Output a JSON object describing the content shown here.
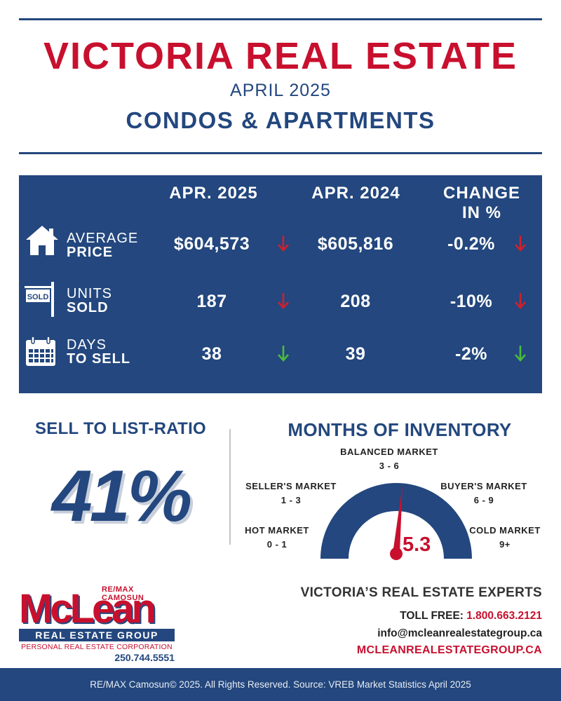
{
  "header": {
    "title": "VICTORIA REAL ESTATE",
    "subtitle": "APRIL 2025",
    "category": "CONDOS & APARTMENTS"
  },
  "stats_table": {
    "columns": [
      "APR. 2025",
      "APR. 2024",
      "CHANGE IN %"
    ],
    "rows": [
      {
        "icon": "house-icon",
        "label_top": "AVERAGE",
        "label_bottom": "PRICE",
        "current": "$604,573",
        "current_trend": "down",
        "previous": "$605,816",
        "change": "-0.2%",
        "change_trend": "down"
      },
      {
        "icon": "sold-sign-icon",
        "icon_text": "SOLD",
        "label_top": "UNITS",
        "label_bottom": "SOLD",
        "current": "187",
        "current_trend": "down",
        "previous": "208",
        "change": "-10%",
        "change_trend": "down"
      },
      {
        "icon": "calendar-icon",
        "label_top": "DAYS",
        "label_bottom": "TO SELL",
        "current": "38",
        "current_trend": "up",
        "previous": "39",
        "change": "-2%",
        "change_trend": "up"
      }
    ]
  },
  "sell_to_list": {
    "title": "SELL TO LIST-RATIO",
    "value": "41%"
  },
  "inventory": {
    "title": "MONTHS OF INVENTORY",
    "value": "5.3",
    "value_numeric": 5.3,
    "markets": [
      {
        "name": "HOT MARKET",
        "range": "0 - 1"
      },
      {
        "name": "SELLER'S MARKET",
        "range": "1 - 3"
      },
      {
        "name": "BALANCED MARKET",
        "range": "3 - 6"
      },
      {
        "name": "BUYER'S MARKET",
        "range": "6 - 9"
      },
      {
        "name": "COLD MARKET",
        "range": "9+"
      }
    ]
  },
  "logo": {
    "brand_top": "RE/MAX CAMOSUN",
    "name": "McLean",
    "group": "REAL ESTATE GROUP",
    "corporation": "PERSONAL REAL ESTATE CORPORATION",
    "phone": "250.744.5551"
  },
  "contact": {
    "tagline": "VICTORIA’S REAL ESTATE EXPERTS",
    "toll_free_label": "TOLL FREE:",
    "toll_free_number": "1.800.663.2121",
    "email": "info@mcleanrealestategroup.ca",
    "website": "MCLEANREALESTATEGROUP.CA"
  },
  "footer": {
    "text": "RE/MAX Camosun© 2025. All Rights Reserved.  Source: VREB Market Statistics April 2025"
  },
  "colors": {
    "navy": "#23477e",
    "red": "#c8102e",
    "down_arrow": "#d0202c",
    "up_arrow": "#4cbb3c"
  }
}
